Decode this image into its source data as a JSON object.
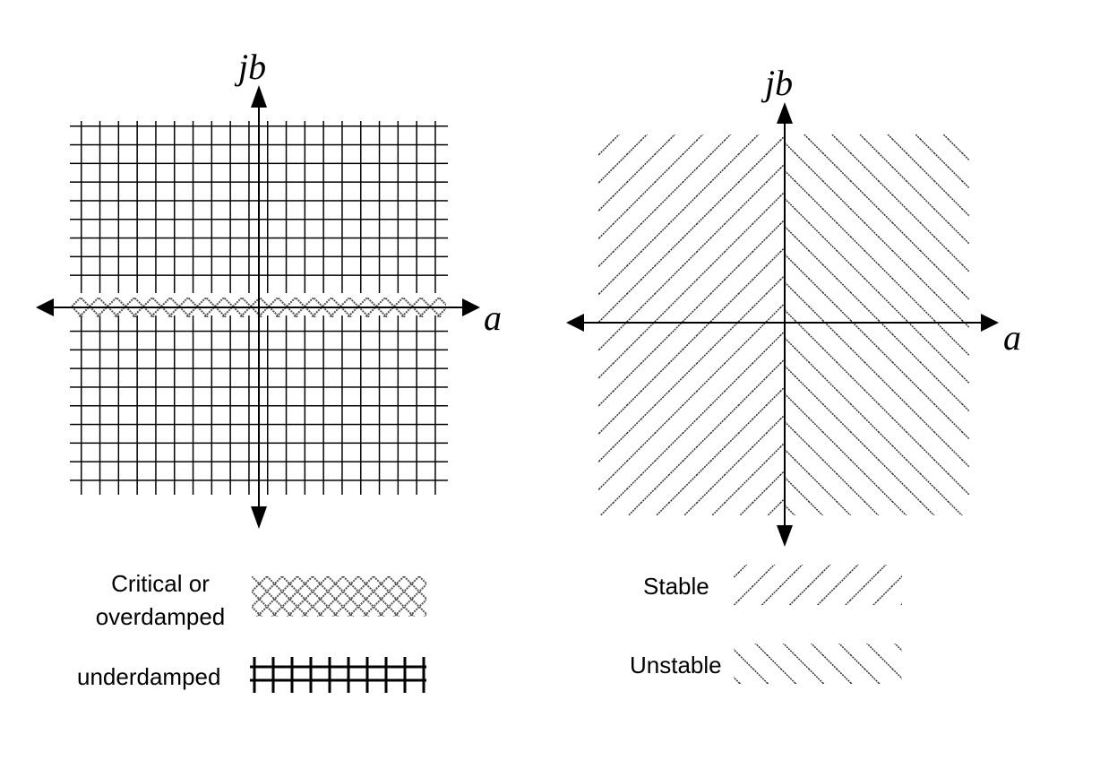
{
  "left_plane": {
    "axis_labels": {
      "vertical": "jb",
      "horizontal": "a"
    },
    "legend": [
      {
        "line1": "Critical or",
        "line2": "overdamped",
        "pattern": "diamond-crosshatch"
      },
      {
        "line1": "underdamped",
        "pattern": "grid"
      }
    ]
  },
  "right_plane": {
    "axis_labels": {
      "vertical": "jb",
      "horizontal": "a"
    },
    "legend": [
      {
        "label": "Stable",
        "pattern": "diagonal-forward"
      },
      {
        "label": "Unstable",
        "pattern": "diagonal-backward"
      }
    ]
  },
  "colors": {
    "ink": "#000000",
    "background": "#ffffff",
    "hatch": "#333333"
  }
}
